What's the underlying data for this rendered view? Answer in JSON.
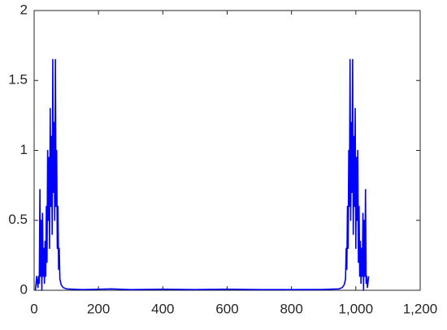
{
  "chart_data": {
    "type": "line",
    "x": [
      4,
      6,
      8,
      12,
      14,
      16,
      18,
      20,
      22,
      24,
      26,
      28,
      30,
      32,
      34,
      36,
      38,
      40,
      42,
      44,
      46,
      48,
      50,
      52,
      54,
      56,
      58,
      60,
      62,
      64,
      66,
      68,
      70,
      72,
      74,
      76,
      78,
      80,
      84,
      90,
      100,
      150,
      240,
      300,
      400,
      500,
      600,
      700,
      800,
      900,
      948,
      958,
      964,
      968,
      970,
      972,
      974,
      976,
      978,
      980,
      982,
      984,
      986,
      988,
      990,
      992,
      994,
      996,
      998,
      1000,
      1002,
      1004,
      1006,
      1008,
      1010,
      1012,
      1014,
      1016,
      1018,
      1020,
      1022,
      1024,
      1026,
      1028,
      1030,
      1032,
      1034,
      1036,
      1040
    ],
    "series": [
      {
        "color": "#0000ff",
        "values": [
          0,
          0.05,
          0.1,
          0.02,
          0.1,
          0.05,
          0.72,
          0.1,
          0.5,
          0,
          0.55,
          0.1,
          0.3,
          0.05,
          0.35,
          0.1,
          0.6,
          0.2,
          1.0,
          0.5,
          0.95,
          0.3,
          1.3,
          0.6,
          1.1,
          0.4,
          1.65,
          0.7,
          1.2,
          0.5,
          1.65,
          0.6,
          1.0,
          0.3,
          0.6,
          0.15,
          0.3,
          0.08,
          0.04,
          0.02,
          0.01,
          0.005,
          0.01,
          0.005,
          0.008,
          0.005,
          0.008,
          0.005,
          0.005,
          0.006,
          0.01,
          0.02,
          0.04,
          0.08,
          0.3,
          0.15,
          0.6,
          0.3,
          1.0,
          0.6,
          1.65,
          0.5,
          1.2,
          0.7,
          1.65,
          0.4,
          1.1,
          0.6,
          1.3,
          0.3,
          0.95,
          0.5,
          1.0,
          0.2,
          0.6,
          0.1,
          0.35,
          0.05,
          0.3,
          0.1,
          0.55,
          0,
          0.5,
          0.1,
          0.72,
          0.05,
          0.1,
          0.02,
          0.1
        ]
      }
    ],
    "xlim": [
      0,
      1200
    ],
    "xticks": [
      0,
      200,
      400,
      600,
      800,
      {
        "value": 1000,
        "label": "1,000"
      },
      {
        "value": 1200,
        "label": "1,200"
      }
    ],
    "ylim": [
      0,
      2
    ],
    "yticks": [
      0,
      0.5,
      1,
      1.5,
      2
    ]
  }
}
